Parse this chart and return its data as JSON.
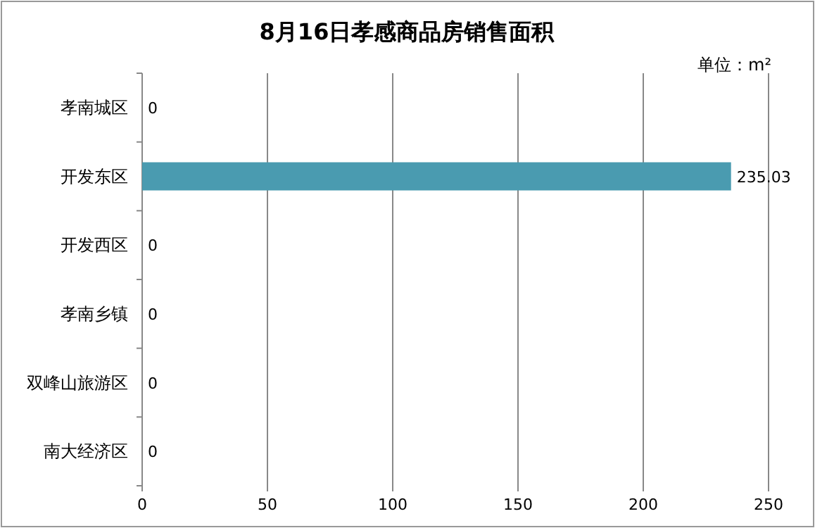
{
  "chart_data": {
    "type": "bar",
    "orientation": "horizontal",
    "title": "8月16日孝感商品房销售面积",
    "annotations": [
      "单位：m²"
    ],
    "categories": [
      "孝南城区",
      "开发东区",
      "开发西区",
      "孝南乡镇",
      "双峰山旅游区",
      "南大经济区"
    ],
    "values": [
      0,
      235.03,
      0,
      0,
      0,
      0
    ],
    "color": "#4a9bb0",
    "data_labels": true,
    "xlim": [
      0,
      250
    ],
    "xticks": [
      0,
      50,
      100,
      150,
      200,
      250
    ],
    "grid": "x"
  }
}
